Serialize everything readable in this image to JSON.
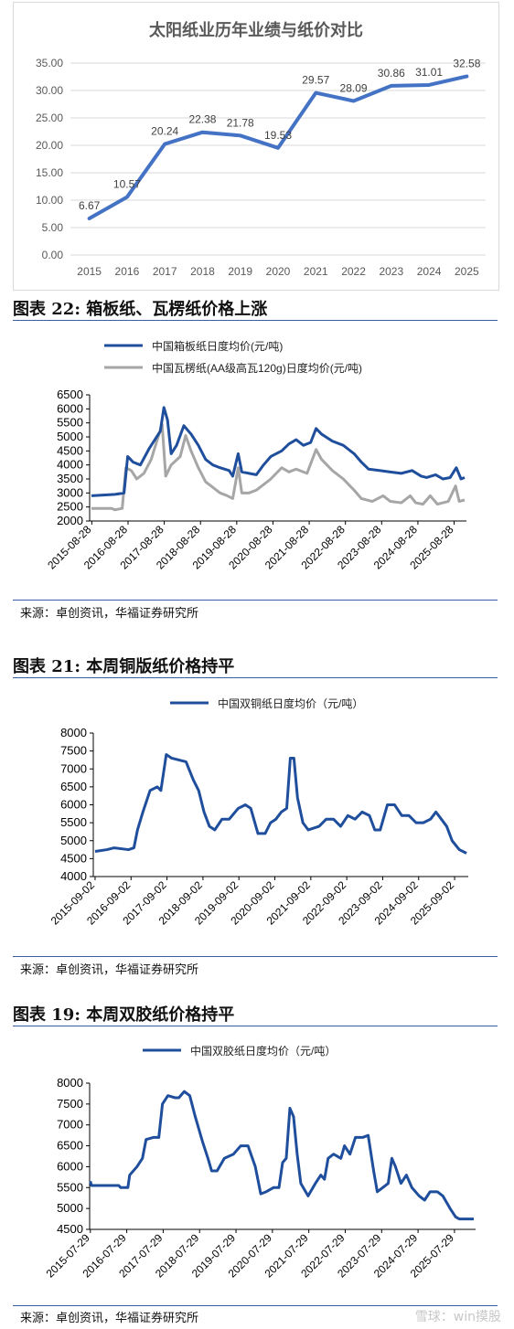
{
  "chart_data": [
    {
      "type": "line",
      "title": "太阳纸业历年业绩与纸价对比",
      "categories": [
        "2015",
        "2016",
        "2017",
        "2018",
        "2019",
        "2020",
        "2021",
        "2022",
        "2023",
        "2024",
        "2025"
      ],
      "values": [
        6.67,
        10.57,
        20.24,
        22.38,
        21.78,
        19.53,
        29.57,
        28.09,
        30.86,
        31.01,
        32.58
      ],
      "data_labels": [
        "6.67",
        "10.57",
        "20.24",
        "22.38",
        "21.78",
        "19.53",
        "29.57",
        "28.09",
        "30.86",
        "31.01",
        "32.58"
      ],
      "yticks": [
        "0.00",
        "5.00",
        "10.00",
        "15.00",
        "20.00",
        "25.00",
        "30.00",
        "35.00"
      ],
      "ylim": [
        0,
        35
      ],
      "grid": true,
      "colors": {
        "line": "#4472c4"
      }
    },
    {
      "type": "line",
      "heading": "图表 22:  箱板纸、瓦楞纸价格上涨",
      "series": [
        {
          "name": "中国箱板纸日度均价(元/吨)",
          "color": "#1f4e9c",
          "points": [
            [
              2015.65,
              2900
            ],
            [
              2016.3,
              2950
            ],
            [
              2016.55,
              3000
            ],
            [
              2016.65,
              4300
            ],
            [
              2016.8,
              4100
            ],
            [
              2017.0,
              4000
            ],
            [
              2017.25,
              4600
            ],
            [
              2017.55,
              5200
            ],
            [
              2017.65,
              6050
            ],
            [
              2017.75,
              5600
            ],
            [
              2017.85,
              4400
            ],
            [
              2018.0,
              4700
            ],
            [
              2018.2,
              5400
            ],
            [
              2018.4,
              5100
            ],
            [
              2018.6,
              4700
            ],
            [
              2018.8,
              4200
            ],
            [
              2019.0,
              4000
            ],
            [
              2019.2,
              3900
            ],
            [
              2019.45,
              3800
            ],
            [
              2019.55,
              3600
            ],
            [
              2019.7,
              4400
            ],
            [
              2019.8,
              3750
            ],
            [
              2020.0,
              3700
            ],
            [
              2020.2,
              3650
            ],
            [
              2020.4,
              4000
            ],
            [
              2020.6,
              4300
            ],
            [
              2020.9,
              4500
            ],
            [
              2021.1,
              4750
            ],
            [
              2021.3,
              4900
            ],
            [
              2021.5,
              4700
            ],
            [
              2021.7,
              4800
            ],
            [
              2021.85,
              5300
            ],
            [
              2022.0,
              5100
            ],
            [
              2022.3,
              4850
            ],
            [
              2022.6,
              4700
            ],
            [
              2022.9,
              4400
            ],
            [
              2023.1,
              4100
            ],
            [
              2023.3,
              3850
            ],
            [
              2023.6,
              3800
            ],
            [
              2023.9,
              3750
            ],
            [
              2024.2,
              3700
            ],
            [
              2024.5,
              3800
            ],
            [
              2024.75,
              3600
            ],
            [
              2024.9,
              3550
            ],
            [
              2025.15,
              3650
            ],
            [
              2025.35,
              3500
            ],
            [
              2025.55,
              3550
            ],
            [
              2025.72,
              3900
            ],
            [
              2025.85,
              3500
            ],
            [
              2025.95,
              3550
            ]
          ]
        },
        {
          "name": "中国瓦楞纸(AA级高瓦120g)日度均价(元/吨)",
          "color": "#a6a6a6",
          "points": [
            [
              2015.65,
              2450
            ],
            [
              2016.2,
              2450
            ],
            [
              2016.3,
              2400
            ],
            [
              2016.5,
              2450
            ],
            [
              2016.6,
              3900
            ],
            [
              2016.75,
              3800
            ],
            [
              2016.9,
              3500
            ],
            [
              2017.1,
              3700
            ],
            [
              2017.3,
              4200
            ],
            [
              2017.6,
              5450
            ],
            [
              2017.7,
              3600
            ],
            [
              2017.85,
              4000
            ],
            [
              2018.1,
              4300
            ],
            [
              2018.25,
              5050
            ],
            [
              2018.4,
              4500
            ],
            [
              2018.6,
              3900
            ],
            [
              2018.8,
              3400
            ],
            [
              2019.0,
              3200
            ],
            [
              2019.2,
              3000
            ],
            [
              2019.4,
              2900
            ],
            [
              2019.55,
              2800
            ],
            [
              2019.7,
              3900
            ],
            [
              2019.8,
              3000
            ],
            [
              2020.0,
              3000
            ],
            [
              2020.2,
              3100
            ],
            [
              2020.4,
              3300
            ],
            [
              2020.6,
              3500
            ],
            [
              2020.9,
              3900
            ],
            [
              2021.1,
              3750
            ],
            [
              2021.3,
              3850
            ],
            [
              2021.6,
              3700
            ],
            [
              2021.85,
              4550
            ],
            [
              2022.0,
              4200
            ],
            [
              2022.3,
              3800
            ],
            [
              2022.6,
              3500
            ],
            [
              2022.9,
              3100
            ],
            [
              2023.1,
              2800
            ],
            [
              2023.4,
              2700
            ],
            [
              2023.7,
              2900
            ],
            [
              2023.9,
              2700
            ],
            [
              2024.2,
              2650
            ],
            [
              2024.45,
              2900
            ],
            [
              2024.6,
              2650
            ],
            [
              2024.8,
              2600
            ],
            [
              2025.0,
              2900
            ],
            [
              2025.2,
              2600
            ],
            [
              2025.5,
              2700
            ],
            [
              2025.7,
              3250
            ],
            [
              2025.8,
              2700
            ],
            [
              2025.95,
              2750
            ]
          ]
        }
      ],
      "xticks": [
        "2015-08-28",
        "2016-08-28",
        "2017-08-28",
        "2018-08-28",
        "2019-08-28",
        "2020-08-28",
        "2021-08-28",
        "2022-08-28",
        "2023-08-28",
        "2024-08-28",
        "2025-08-28"
      ],
      "yticks": [
        "2000",
        "2500",
        "3000",
        "3500",
        "4000",
        "4500",
        "5000",
        "5500",
        "6000",
        "6500"
      ],
      "ylim": [
        2000,
        6500
      ],
      "legend_position": "top",
      "source": "来源：卓创资讯，华福证券研究所"
    },
    {
      "type": "line",
      "heading": "图表 21:  本周铜版纸价格持平",
      "series": [
        {
          "name": "中国双铜纸日度均价（元/吨）",
          "color": "#1f4e9c",
          "points": [
            [
              2015.67,
              4700
            ],
            [
              2016.0,
              4750
            ],
            [
              2016.2,
              4800
            ],
            [
              2016.6,
              4750
            ],
            [
              2016.75,
              4800
            ],
            [
              2016.85,
              5300
            ],
            [
              2017.0,
              5800
            ],
            [
              2017.1,
              6100
            ],
            [
              2017.2,
              6400
            ],
            [
              2017.4,
              6500
            ],
            [
              2017.5,
              6400
            ],
            [
              2017.65,
              7400
            ],
            [
              2017.8,
              7300
            ],
            [
              2018.0,
              7250
            ],
            [
              2018.2,
              7200
            ],
            [
              2018.4,
              6700
            ],
            [
              2018.55,
              6400
            ],
            [
              2018.7,
              5800
            ],
            [
              2018.85,
              5400
            ],
            [
              2019.0,
              5300
            ],
            [
              2019.2,
              5600
            ],
            [
              2019.4,
              5600
            ],
            [
              2019.65,
              5900
            ],
            [
              2019.85,
              6000
            ],
            [
              2020.0,
              5900
            ],
            [
              2020.2,
              5200
            ],
            [
              2020.4,
              5200
            ],
            [
              2020.55,
              5500
            ],
            [
              2020.7,
              5600
            ],
            [
              2020.85,
              5800
            ],
            [
              2021.0,
              5900
            ],
            [
              2021.1,
              7300
            ],
            [
              2021.2,
              7300
            ],
            [
              2021.3,
              6200
            ],
            [
              2021.45,
              5500
            ],
            [
              2021.6,
              5300
            ],
            [
              2021.9,
              5400
            ],
            [
              2022.1,
              5600
            ],
            [
              2022.3,
              5600
            ],
            [
              2022.5,
              5400
            ],
            [
              2022.7,
              5700
            ],
            [
              2022.9,
              5600
            ],
            [
              2023.1,
              5800
            ],
            [
              2023.3,
              5700
            ],
            [
              2023.45,
              5300
            ],
            [
              2023.6,
              5300
            ],
            [
              2023.8,
              6000
            ],
            [
              2024.0,
              6000
            ],
            [
              2024.2,
              5700
            ],
            [
              2024.4,
              5700
            ],
            [
              2024.6,
              5500
            ],
            [
              2024.8,
              5500
            ],
            [
              2025.0,
              5600
            ],
            [
              2025.15,
              5800
            ],
            [
              2025.3,
              5600
            ],
            [
              2025.45,
              5400
            ],
            [
              2025.6,
              5000
            ],
            [
              2025.8,
              4750
            ],
            [
              2026.0,
              4650
            ]
          ]
        }
      ],
      "xticks": [
        "2015-09-02",
        "2016-09-02",
        "2017-09-02",
        "2018-09-02",
        "2019-09-02",
        "2020-09-02",
        "2021-09-02",
        "2022-09-02",
        "2023-09-02",
        "2024-09-02",
        "2025-09-02"
      ],
      "yticks": [
        "4000",
        "4500",
        "5000",
        "5500",
        "6000",
        "6500",
        "7000",
        "7500",
        "8000"
      ],
      "ylim": [
        4000,
        8000
      ],
      "legend_position": "top",
      "source": "来源：卓创资讯，华福证券研究所"
    },
    {
      "type": "line",
      "heading": "图表 19:  本周双胶纸价格持平",
      "series": [
        {
          "name": "中国双胶纸日度均价（元/吨）",
          "color": "#1f4e9c",
          "points": [
            [
              2015.57,
              5650
            ],
            [
              2015.6,
              5550
            ],
            [
              2016.0,
              5550
            ],
            [
              2016.35,
              5550
            ],
            [
              2016.4,
              5500
            ],
            [
              2016.6,
              5500
            ],
            [
              2016.65,
              5800
            ],
            [
              2016.85,
              6000
            ],
            [
              2017.0,
              6200
            ],
            [
              2017.1,
              6650
            ],
            [
              2017.3,
              6700
            ],
            [
              2017.45,
              6700
            ],
            [
              2017.55,
              7500
            ],
            [
              2017.7,
              7700
            ],
            [
              2017.9,
              7650
            ],
            [
              2018.0,
              7650
            ],
            [
              2018.15,
              7800
            ],
            [
              2018.3,
              7700
            ],
            [
              2018.45,
              7200
            ],
            [
              2018.65,
              6600
            ],
            [
              2018.8,
              6200
            ],
            [
              2018.9,
              5900
            ],
            [
              2019.05,
              5900
            ],
            [
              2019.25,
              6200
            ],
            [
              2019.5,
              6300
            ],
            [
              2019.7,
              6500
            ],
            [
              2019.9,
              6500
            ],
            [
              2020.1,
              6000
            ],
            [
              2020.25,
              5350
            ],
            [
              2020.4,
              5400
            ],
            [
              2020.6,
              5500
            ],
            [
              2020.75,
              5500
            ],
            [
              2020.85,
              6100
            ],
            [
              2020.95,
              6200
            ],
            [
              2021.05,
              7400
            ],
            [
              2021.15,
              7200
            ],
            [
              2021.25,
              6300
            ],
            [
              2021.35,
              5600
            ],
            [
              2021.55,
              5300
            ],
            [
              2021.75,
              5600
            ],
            [
              2021.9,
              5800
            ],
            [
              2022.0,
              5700
            ],
            [
              2022.1,
              6200
            ],
            [
              2022.25,
              6300
            ],
            [
              2022.45,
              6200
            ],
            [
              2022.55,
              6500
            ],
            [
              2022.7,
              6300
            ],
            [
              2022.85,
              6700
            ],
            [
              2023.05,
              6700
            ],
            [
              2023.2,
              6750
            ],
            [
              2023.35,
              5900
            ],
            [
              2023.45,
              5400
            ],
            [
              2023.6,
              5500
            ],
            [
              2023.75,
              5600
            ],
            [
              2023.85,
              6200
            ],
            [
              2023.95,
              6000
            ],
            [
              2024.1,
              5600
            ],
            [
              2024.25,
              5800
            ],
            [
              2024.4,
              5500
            ],
            [
              2024.6,
              5300
            ],
            [
              2024.75,
              5200
            ],
            [
              2024.9,
              5400
            ],
            [
              2025.1,
              5400
            ],
            [
              2025.25,
              5300
            ],
            [
              2025.45,
              5000
            ],
            [
              2025.6,
              4800
            ],
            [
              2025.7,
              4750
            ],
            [
              2026.1,
              4750
            ]
          ]
        }
      ],
      "xticks": [
        "2015-07-29",
        "2016-07-29",
        "2017-07-29",
        "2018-07-29",
        "2019-07-29",
        "2020-07-29",
        "2021-07-29",
        "2022-07-29",
        "2023-07-29",
        "2024-07-29",
        "2025-07-29"
      ],
      "yticks": [
        "4500",
        "5000",
        "5500",
        "6000",
        "6500",
        "7000",
        "7500",
        "8000"
      ],
      "ylim": [
        4500,
        8000
      ],
      "legend_position": "top",
      "source": "来源：卓创资讯，华福证券研究所"
    }
  ],
  "watermark": "雪球：win摸股"
}
